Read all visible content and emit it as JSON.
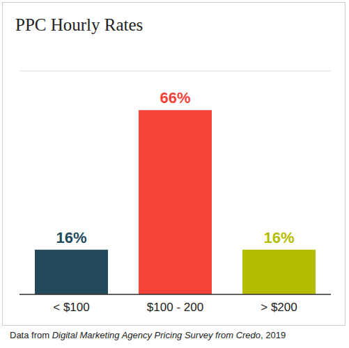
{
  "chart_data": {
    "type": "bar",
    "title": "PPC Hourly Rates",
    "categories": [
      "< $100",
      "$100 - 200",
      "> $200"
    ],
    "values": [
      16,
      66,
      16
    ],
    "value_labels": [
      "16%",
      "66%",
      "16%"
    ],
    "colors": [
      "#234a5a",
      "#f5433a",
      "#b5bd00"
    ],
    "ylim": [
      0,
      80
    ],
    "yticks": [
      0,
      40,
      80
    ],
    "grid": true,
    "data_labels": true,
    "tick_labels": "x",
    "caption": [
      "Data from ",
      "Digital Marketing Agency Pricing Survey from Credo",
      ", 2019"
    ]
  }
}
